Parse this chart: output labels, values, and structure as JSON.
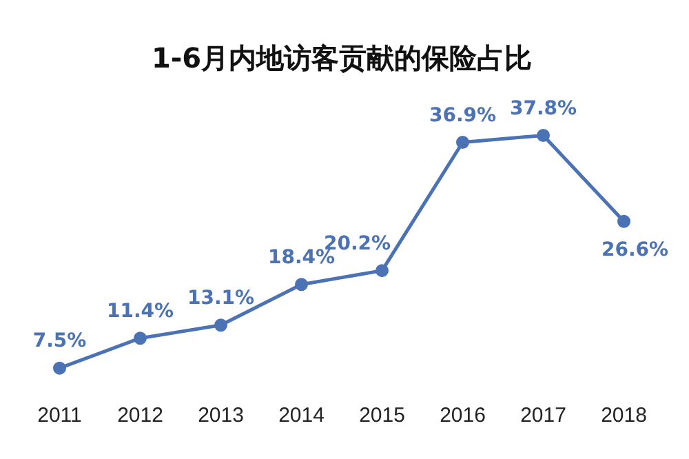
{
  "chart_data": {
    "type": "line",
    "title": "1-6月内地访客贡献的保险占比",
    "categories": [
      "2011",
      "2012",
      "2013",
      "2014",
      "2015",
      "2016",
      "2017",
      "2018"
    ],
    "series": [
      {
        "color": "#4a72b4",
        "values": [
          7.5,
          11.4,
          13.1,
          18.4,
          20.2,
          36.9,
          37.8,
          26.6
        ],
        "value_labels": [
          "7.5%",
          "11.4%",
          "13.1%",
          "18.4%",
          "20.2%",
          "36.9%",
          "37.8%",
          "26.6%"
        ]
      }
    ],
    "tick_labels": "x",
    "grid": false,
    "legend": false,
    "marker": "circle",
    "line_style": "solid"
  }
}
